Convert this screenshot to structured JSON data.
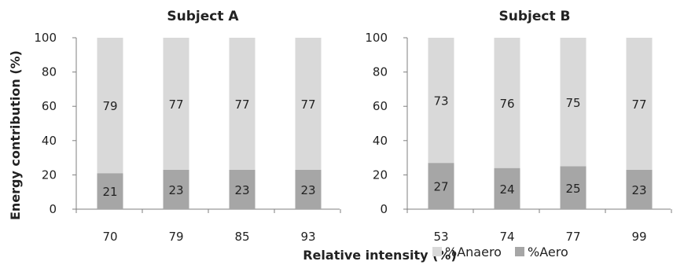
{
  "chart_data": [
    {
      "type": "bar",
      "stacked": true,
      "title": "Subject A",
      "categories": [
        "70",
        "79",
        "85",
        "93"
      ],
      "ylim": [
        0,
        100
      ],
      "yticks": [
        0,
        20,
        40,
        60,
        80,
        100
      ],
      "grid": false,
      "series": [
        {
          "name": "%Aero",
          "values": [
            21,
            23,
            23,
            23
          ],
          "color": "#a6a6a6"
        },
        {
          "name": "%Anaero",
          "values": [
            79,
            77,
            77,
            77
          ],
          "color": "#d9d9d9"
        }
      ]
    },
    {
      "type": "bar",
      "stacked": true,
      "title": "Subject B",
      "categories": [
        "53",
        "74",
        "77",
        "99"
      ],
      "ylim": [
        0,
        100
      ],
      "yticks": [
        0,
        20,
        40,
        60,
        80,
        100
      ],
      "grid": false,
      "series": [
        {
          "name": "%Aero",
          "values": [
            27,
            24,
            25,
            23
          ],
          "color": "#a6a6a6"
        },
        {
          "name": "%Anaero",
          "values": [
            73,
            76,
            75,
            77
          ],
          "color": "#d9d9d9"
        }
      ]
    }
  ],
  "axes": {
    "ylabel": "Energy contribution (%)",
    "xlabel": "Relative intensity (%)"
  },
  "legend": {
    "placement": "bottom-right",
    "items": [
      {
        "label": "%Anaero",
        "color": "#d9d9d9"
      },
      {
        "label": "%Aero",
        "color": "#a6a6a6"
      }
    ]
  }
}
